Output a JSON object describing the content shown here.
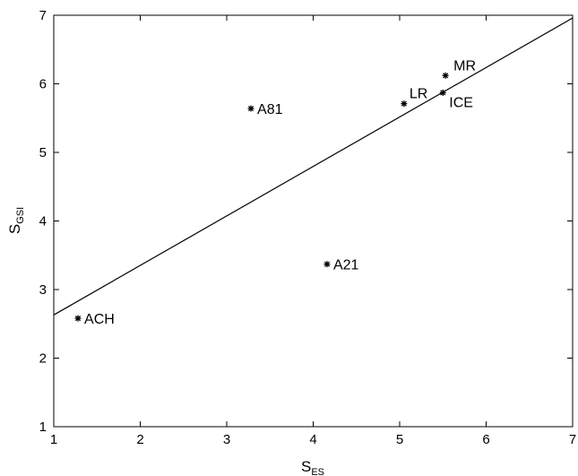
{
  "chart_data": {
    "type": "scatter",
    "title": "",
    "xlabel": "S",
    "xlabel_sub": "ES",
    "ylabel": "S",
    "ylabel_sub": "GSI",
    "xlim": [
      1,
      7
    ],
    "ylim": [
      1,
      7
    ],
    "xticks": [
      1,
      2,
      3,
      4,
      5,
      6,
      7
    ],
    "yticks": [
      1,
      2,
      3,
      4,
      5,
      6,
      7
    ],
    "grid": false,
    "marker": "*",
    "colors": {
      "marks": "#000000",
      "background": "#ffffff"
    },
    "points": [
      {
        "label": "ACH",
        "x": 1.28,
        "y": 2.58
      },
      {
        "label": "A81",
        "x": 3.28,
        "y": 5.64
      },
      {
        "label": "A21",
        "x": 4.16,
        "y": 3.37
      },
      {
        "label": "LR",
        "x": 5.05,
        "y": 5.71
      },
      {
        "label": "ICE",
        "x": 5.5,
        "y": 5.87
      },
      {
        "label": "MR",
        "x": 5.53,
        "y": 6.12
      }
    ],
    "fit_line": {
      "x": [
        1,
        7
      ],
      "y": [
        2.63,
        6.96
      ]
    }
  }
}
